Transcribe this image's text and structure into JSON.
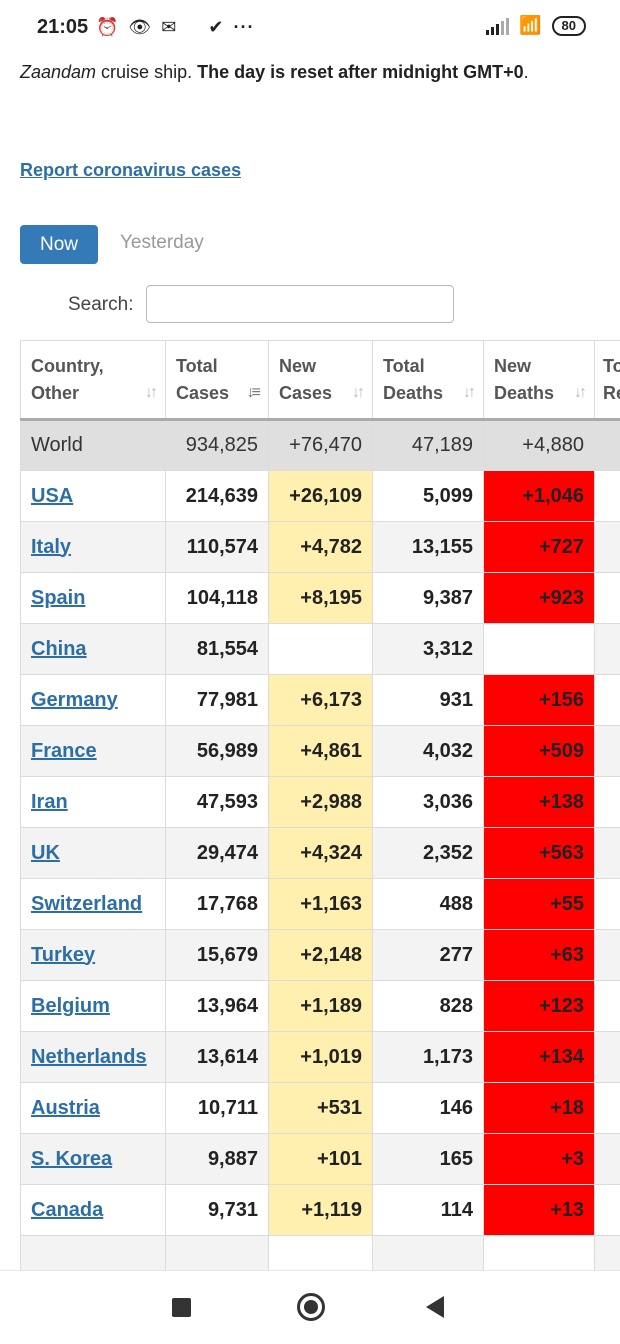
{
  "status_bar": {
    "time": "21:05",
    "icons_left": [
      "alarm-icon",
      "eye-icon",
      "mail-icon",
      "check-icon"
    ],
    "more": "···",
    "battery": "80"
  },
  "intro": {
    "italic": "Zaandam",
    "plain1": " cruise ship. ",
    "bold": "The day is reset after midnight GMT+0",
    "plain2": "."
  },
  "report_link": "Report coronavirus cases",
  "tabs": {
    "now": "Now",
    "yesterday": "Yesterday"
  },
  "search": {
    "label": "Search:",
    "value": ""
  },
  "table": {
    "headers": [
      {
        "line1": "Country,",
        "line2": "Other"
      },
      {
        "line1": "Total",
        "line2": "Cases"
      },
      {
        "line1": "New",
        "line2": "Cases"
      },
      {
        "line1": "Total",
        "line2": "Deaths"
      },
      {
        "line1": "New",
        "line2": "Deaths"
      },
      {
        "line1": "To",
        "line2": "Re"
      }
    ],
    "world": {
      "country": "World",
      "total": "934,825",
      "new": "+76,470",
      "deaths": "47,189",
      "new_deaths": "+4,880"
    },
    "rows": [
      {
        "country": "USA",
        "total": "214,639",
        "new": "+26,109",
        "deaths": "5,099",
        "new_deaths": "+1,046"
      },
      {
        "country": "Italy",
        "total": "110,574",
        "new": "+4,782",
        "deaths": "13,155",
        "new_deaths": "+727"
      },
      {
        "country": "Spain",
        "total": "104,118",
        "new": "+8,195",
        "deaths": "9,387",
        "new_deaths": "+923"
      },
      {
        "country": "China",
        "total": "81,554",
        "new": "",
        "deaths": "3,312",
        "new_deaths": ""
      },
      {
        "country": "Germany",
        "total": "77,981",
        "new": "+6,173",
        "deaths": "931",
        "new_deaths": "+156"
      },
      {
        "country": "France",
        "total": "56,989",
        "new": "+4,861",
        "deaths": "4,032",
        "new_deaths": "+509"
      },
      {
        "country": "Iran",
        "total": "47,593",
        "new": "+2,988",
        "deaths": "3,036",
        "new_deaths": "+138"
      },
      {
        "country": "UK",
        "total": "29,474",
        "new": "+4,324",
        "deaths": "2,352",
        "new_deaths": "+563"
      },
      {
        "country": "Switzerland",
        "total": "17,768",
        "new": "+1,163",
        "deaths": "488",
        "new_deaths": "+55"
      },
      {
        "country": "Turkey",
        "total": "15,679",
        "new": "+2,148",
        "deaths": "277",
        "new_deaths": "+63"
      },
      {
        "country": "Belgium",
        "total": "13,964",
        "new": "+1,189",
        "deaths": "828",
        "new_deaths": "+123"
      },
      {
        "country": "Netherlands",
        "total": "13,614",
        "new": "+1,019",
        "deaths": "1,173",
        "new_deaths": "+134"
      },
      {
        "country": "Austria",
        "total": "10,711",
        "new": "+531",
        "deaths": "146",
        "new_deaths": "+18"
      },
      {
        "country": "S. Korea",
        "total": "9,887",
        "new": "+101",
        "deaths": "165",
        "new_deaths": "+3"
      },
      {
        "country": "Canada",
        "total": "9,731",
        "new": "+1,119",
        "deaths": "114",
        "new_deaths": "+13"
      },
      {
        "country": "",
        "total": "",
        "new": "",
        "deaths": "",
        "new_deaths": ""
      }
    ]
  },
  "colors": {
    "link": "#2c6ea6",
    "primary_button": "#337ab7",
    "new_cases_bg": "#fff0b0",
    "new_deaths_bg": "#ff0000",
    "world_row_bg": "#dfdfdf"
  },
  "nav_bar": [
    "recents-icon",
    "home-icon",
    "back-icon"
  ]
}
